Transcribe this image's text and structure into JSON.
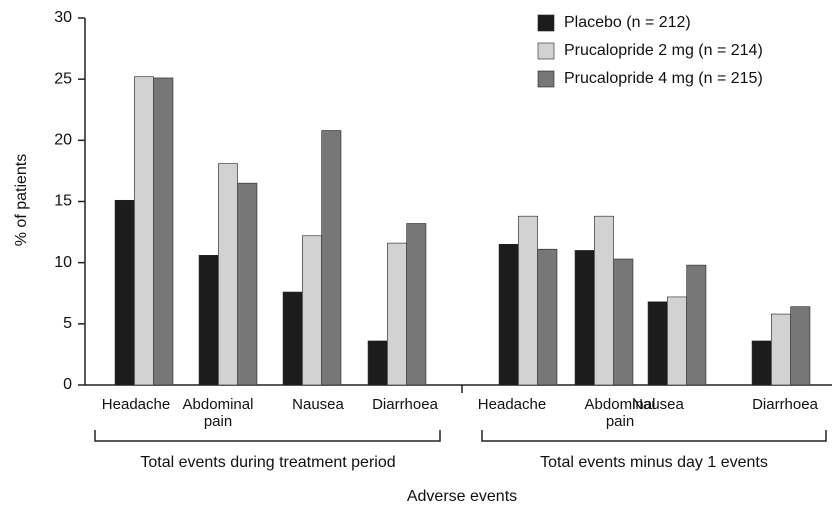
{
  "chart_data": {
    "type": "bar",
    "y_label": "% of patients",
    "x_label": "Adverse events",
    "group_labels": [
      "Total events during treatment period",
      "Total events minus day 1 events"
    ],
    "categories": [
      "Headache",
      "Abdominal pain",
      "Nausea",
      "Diarrhoea",
      "Headache",
      "Abdominal pain",
      "Nausea",
      "Diarrhoea"
    ],
    "series": [
      {
        "name": "Placebo (n = 212)",
        "color": "#1c1c1c",
        "values": [
          15.1,
          10.6,
          7.6,
          3.6,
          11.5,
          11.0,
          6.8,
          3.6
        ]
      },
      {
        "name": "Prucalopride 2 mg (n = 214)",
        "color": "#d2d2d2",
        "values": [
          25.2,
          18.1,
          12.2,
          11.6,
          13.8,
          13.8,
          7.2,
          5.8
        ]
      },
      {
        "name": "Prucalopride 4 mg (n = 215)",
        "color": "#777777",
        "values": [
          25.1,
          16.5,
          20.8,
          13.2,
          11.1,
          10.3,
          9.8,
          6.4
        ]
      }
    ],
    "ylim": [
      0,
      30
    ],
    "yticks": [
      0,
      5,
      10,
      15,
      20,
      25,
      30
    ]
  }
}
